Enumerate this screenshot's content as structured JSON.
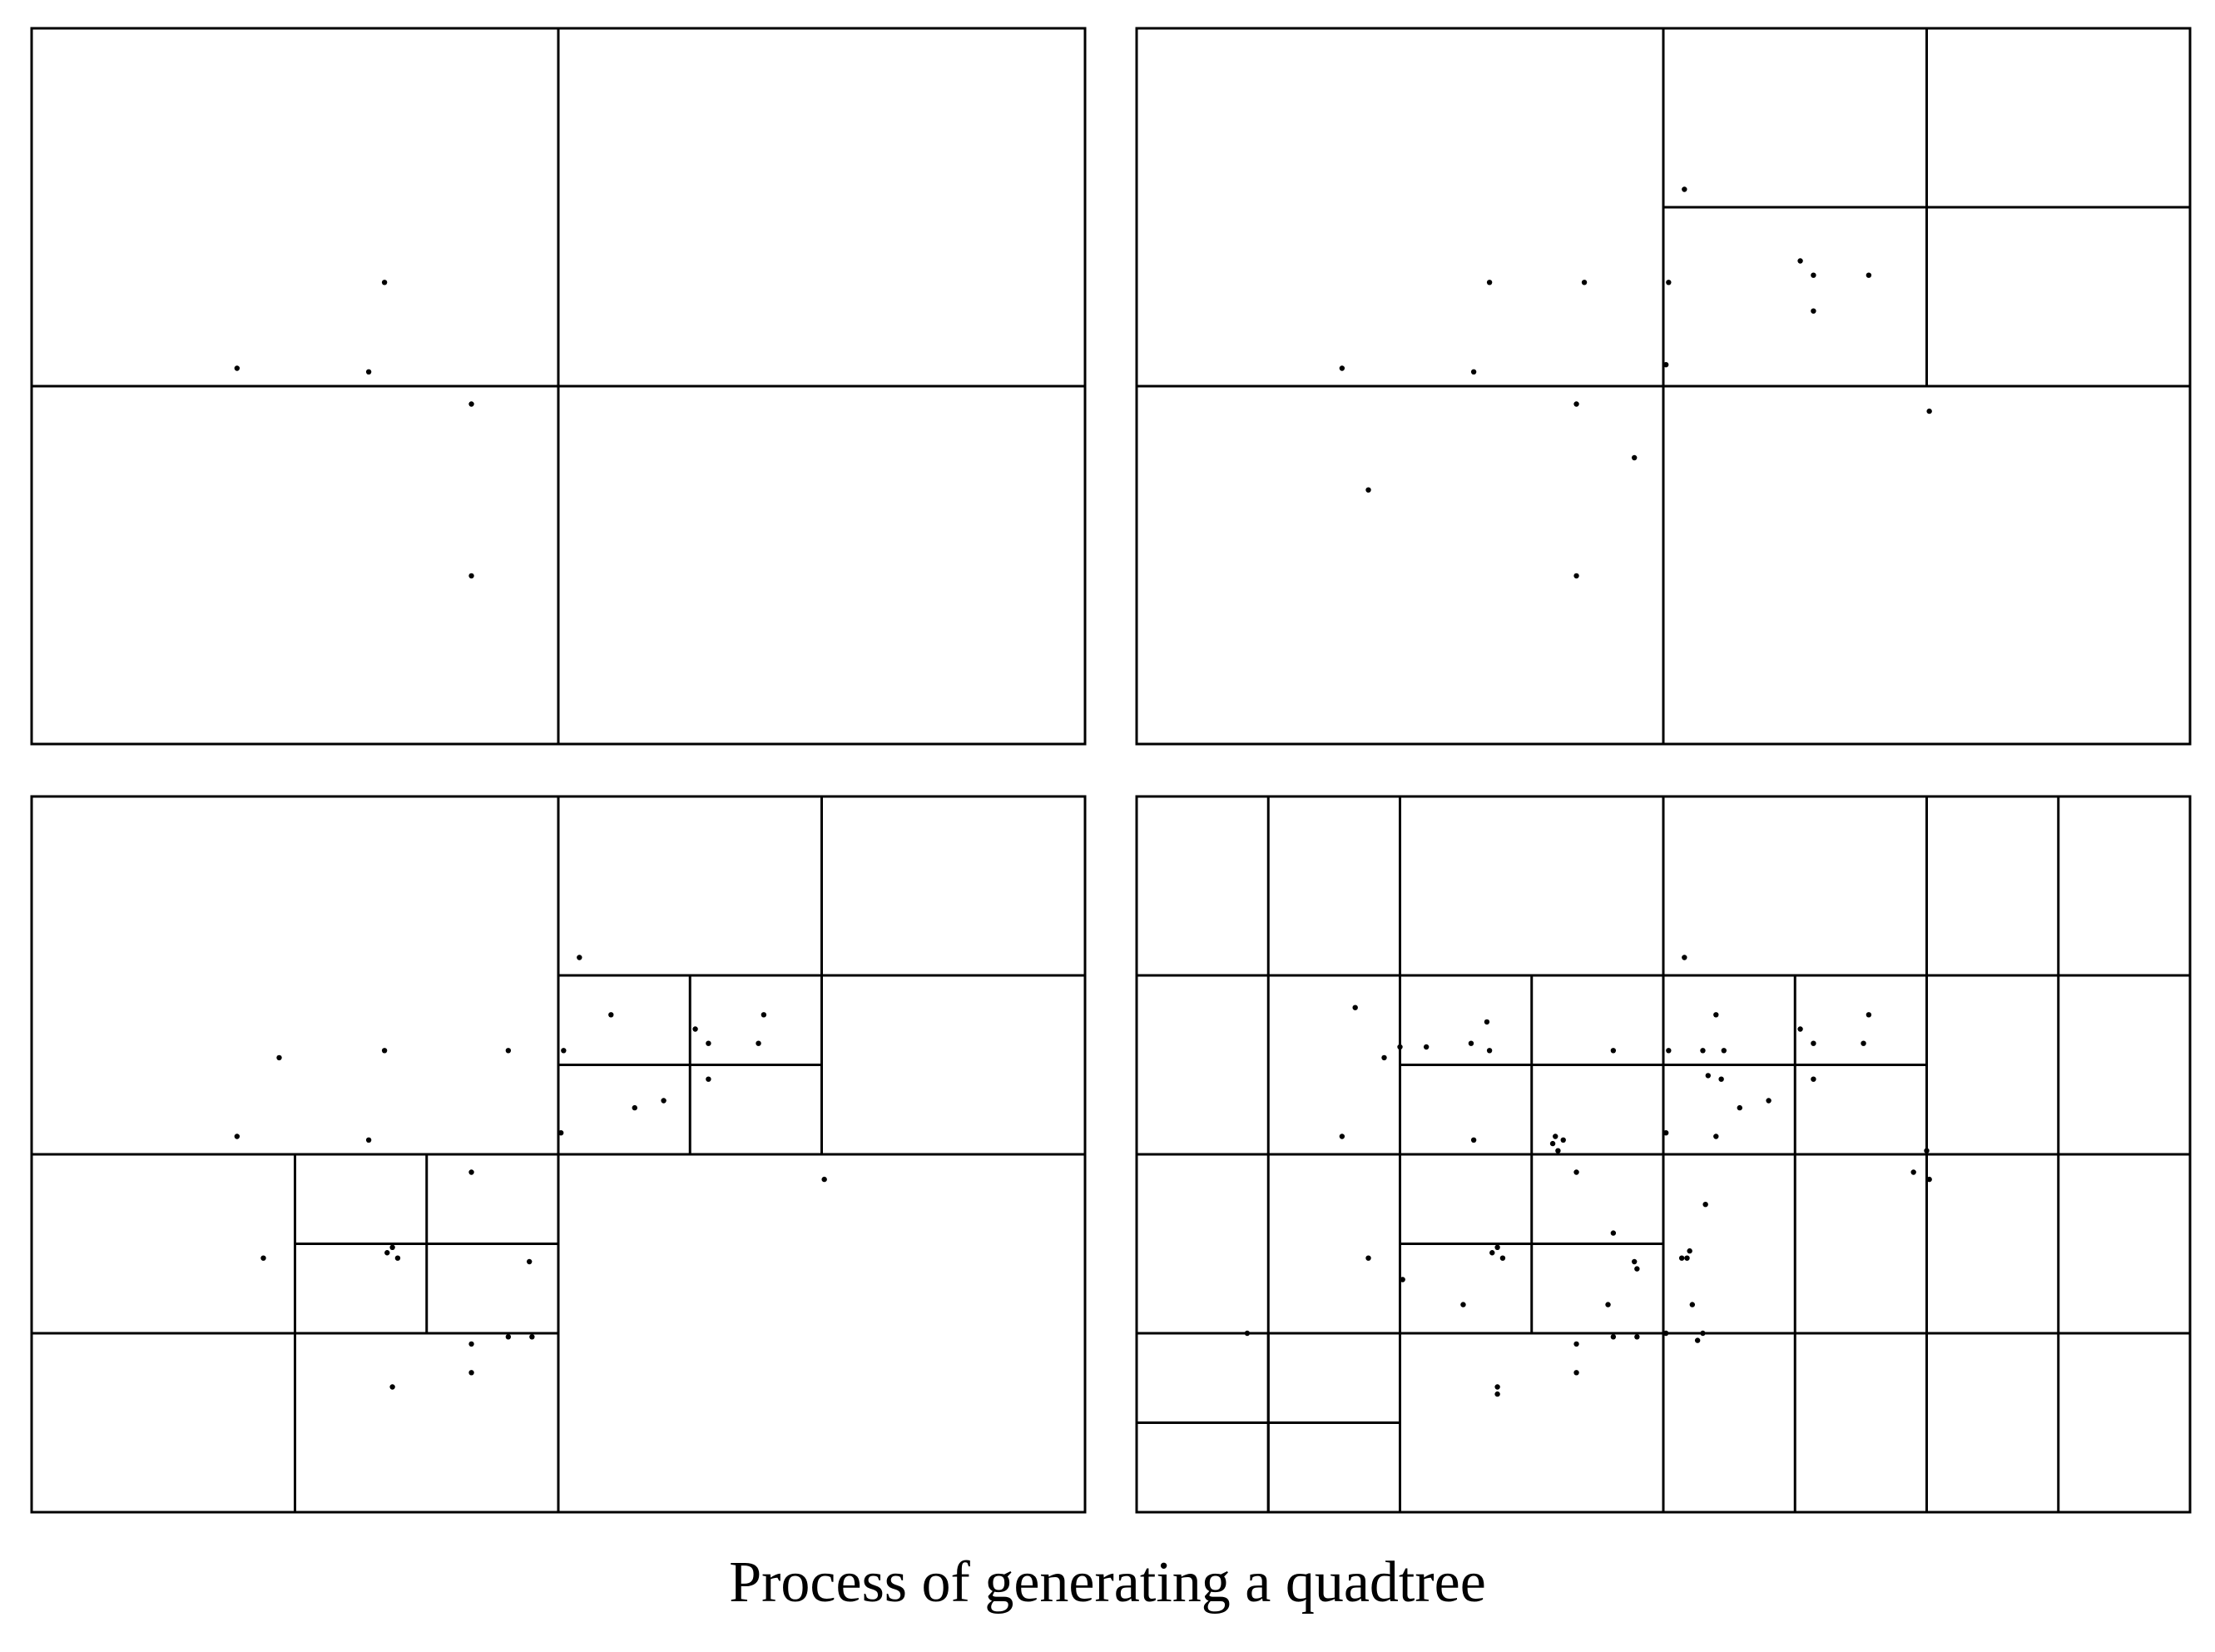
{
  "caption": "Process of generating a quadtree",
  "colors": {
    "line": "#000000",
    "point": "#000000",
    "background": "#ffffff"
  },
  "domain": {
    "x": [
      0,
      8
    ],
    "y": [
      0,
      4
    ]
  },
  "panels": [
    {
      "name": "panel-stage-1",
      "splits": [
        [
          0,
          8,
          0,
          4
        ]
      ],
      "points": [
        [
          1.56,
          2.1
        ],
        [
          2.56,
          2.08
        ],
        [
          2.68,
          2.58
        ],
        [
          3.34,
          1.9
        ],
        [
          3.34,
          0.94
        ]
      ]
    },
    {
      "name": "panel-stage-2",
      "splits": [
        [
          0,
          8,
          0,
          4
        ],
        [
          4,
          8,
          2,
          4
        ]
      ],
      "points": [
        [
          1.56,
          2.1
        ],
        [
          2.56,
          2.08
        ],
        [
          2.68,
          2.58
        ],
        [
          3.34,
          1.9
        ],
        [
          3.34,
          0.94
        ],
        [
          4.16,
          3.1
        ],
        [
          4.04,
          2.58
        ],
        [
          4.02,
          2.12
        ],
        [
          3.4,
          2.58
        ],
        [
          5.04,
          2.7
        ],
        [
          5.14,
          2.62
        ],
        [
          5.56,
          2.62
        ],
        [
          5.14,
          2.42
        ],
        [
          3.78,
          1.6
        ],
        [
          1.76,
          1.42
        ],
        [
          6.02,
          1.86
        ]
      ]
    },
    {
      "name": "panel-stage-3",
      "splits": [
        [
          0,
          8,
          0,
          4
        ],
        [
          4,
          8,
          2,
          4
        ],
        [
          4,
          6,
          2,
          3
        ],
        [
          0,
          4,
          0,
          2
        ],
        [
          2,
          4,
          1,
          2
        ]
      ],
      "points": [
        [
          1.56,
          2.1
        ],
        [
          2.56,
          2.08
        ],
        [
          2.68,
          2.58
        ],
        [
          3.34,
          1.9
        ],
        [
          3.34,
          0.94
        ],
        [
          1.88,
          2.54
        ],
        [
          3.62,
          2.58
        ],
        [
          4.16,
          3.1
        ],
        [
          4.4,
          2.78
        ],
        [
          4.04,
          2.58
        ],
        [
          4.02,
          2.12
        ],
        [
          5.04,
          2.7
        ],
        [
          5.14,
          2.62
        ],
        [
          5.56,
          2.78
        ],
        [
          5.52,
          2.62
        ],
        [
          4.58,
          2.26
        ],
        [
          4.8,
          2.3
        ],
        [
          5.14,
          2.42
        ],
        [
          6.02,
          1.86
        ],
        [
          2.7,
          1.45
        ],
        [
          2.74,
          1.48
        ],
        [
          2.78,
          1.42
        ],
        [
          3.78,
          1.4
        ],
        [
          1.76,
          1.42
        ],
        [
          3.62,
          0.98
        ],
        [
          3.8,
          0.98
        ],
        [
          3.34,
          0.78
        ],
        [
          2.74,
          0.7
        ]
      ]
    },
    {
      "name": "panel-stage-4",
      "splits": [
        [
          0,
          8,
          0,
          4
        ],
        [
          4,
          8,
          2,
          4
        ],
        [
          4,
          6,
          2,
          3
        ],
        [
          0,
          4,
          0,
          2
        ],
        [
          2,
          4,
          1,
          2
        ],
        [
          0,
          4,
          2,
          4
        ],
        [
          2,
          4,
          2,
          3
        ],
        [
          0,
          2,
          0,
          2
        ],
        [
          0,
          2,
          2,
          4
        ],
        [
          6,
          8,
          2,
          4
        ],
        [
          4,
          8,
          0,
          2
        ],
        [
          4,
          6,
          0,
          2
        ],
        [
          6,
          8,
          0,
          2
        ],
        [
          0,
          2,
          0,
          1
        ]
      ],
      "points": [
        [
          1.56,
          2.1
        ],
        [
          2.56,
          2.08
        ],
        [
          2.68,
          2.58
        ],
        [
          3.34,
          1.9
        ],
        [
          3.34,
          0.94
        ],
        [
          1.88,
          2.54
        ],
        [
          3.62,
          2.58
        ],
        [
          4.16,
          3.1
        ],
        [
          4.4,
          2.78
        ],
        [
          4.04,
          2.58
        ],
        [
          4.02,
          2.12
        ],
        [
          5.04,
          2.7
        ],
        [
          5.14,
          2.62
        ],
        [
          5.56,
          2.78
        ],
        [
          5.52,
          2.62
        ],
        [
          4.58,
          2.26
        ],
        [
          4.8,
          2.3
        ],
        [
          5.14,
          2.42
        ],
        [
          6.02,
          1.86
        ],
        [
          2.7,
          1.45
        ],
        [
          2.74,
          1.48
        ],
        [
          2.78,
          1.42
        ],
        [
          3.78,
          1.4
        ],
        [
          1.76,
          1.42
        ],
        [
          3.62,
          0.98
        ],
        [
          3.8,
          0.98
        ],
        [
          3.34,
          0.78
        ],
        [
          2.74,
          0.7
        ],
        [
          1.66,
          2.82
        ],
        [
          2.0,
          2.6
        ],
        [
          2.2,
          2.6
        ],
        [
          2.66,
          2.74
        ],
        [
          2.54,
          2.62
        ],
        [
          3.18,
          2.1
        ],
        [
          3.24,
          2.08
        ],
        [
          3.16,
          2.06
        ],
        [
          3.2,
          2.02
        ],
        [
          3.62,
          1.56
        ],
        [
          4.3,
          2.58
        ],
        [
          4.46,
          2.58
        ],
        [
          4.34,
          2.44
        ],
        [
          4.44,
          2.42
        ],
        [
          4.4,
          2.1
        ],
        [
          4.32,
          1.72
        ],
        [
          4.2,
          1.46
        ],
        [
          4.14,
          1.42
        ],
        [
          4.18,
          1.42
        ],
        [
          4.22,
          1.16
        ],
        [
          4.3,
          1.0
        ],
        [
          2.02,
          1.3
        ],
        [
          6.0,
          2.02
        ],
        [
          5.9,
          1.9
        ],
        [
          0.84,
          1.0
        ],
        [
          2.74,
          0.66
        ],
        [
          3.8,
          1.36
        ],
        [
          3.58,
          1.16
        ],
        [
          4.02,
          1.0
        ],
        [
          2.48,
          1.16
        ],
        [
          4.26,
          0.96
        ]
      ]
    }
  ]
}
